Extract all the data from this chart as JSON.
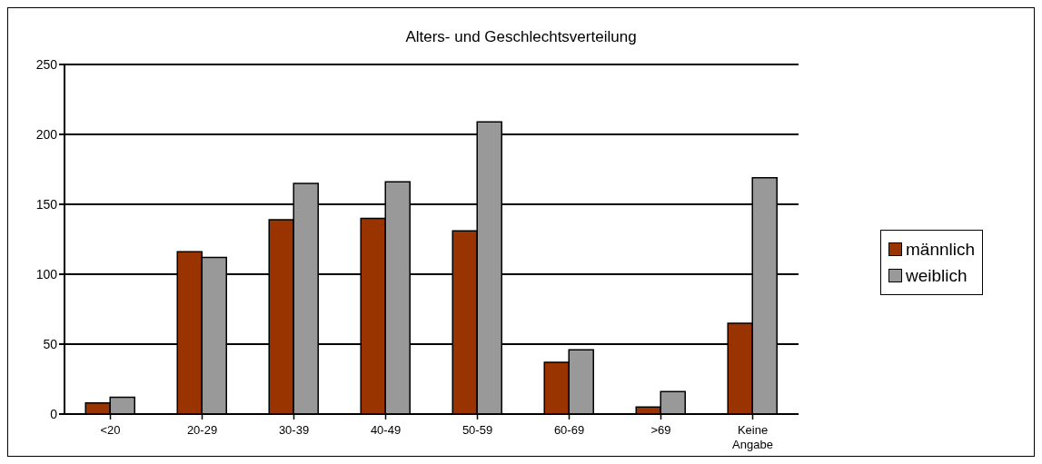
{
  "chart_data": {
    "type": "bar",
    "title": "Alters- und Geschlechtsverteilung",
    "categories": [
      "<20",
      "20-29",
      "30-39",
      "40-49",
      "50-59",
      "60-69",
      ">69",
      "Keine Angabe"
    ],
    "series": [
      {
        "name": "männlich",
        "color": "#993300",
        "values": [
          8,
          116,
          139,
          140,
          131,
          37,
          5,
          65
        ]
      },
      {
        "name": "weiblich",
        "color": "#999999",
        "values": [
          12,
          112,
          165,
          166,
          209,
          46,
          16,
          169
        ]
      }
    ],
    "ylim": [
      0,
      250
    ],
    "yticks": [
      0,
      50,
      100,
      150,
      200,
      250
    ],
    "grid": "y",
    "legend": "right"
  }
}
